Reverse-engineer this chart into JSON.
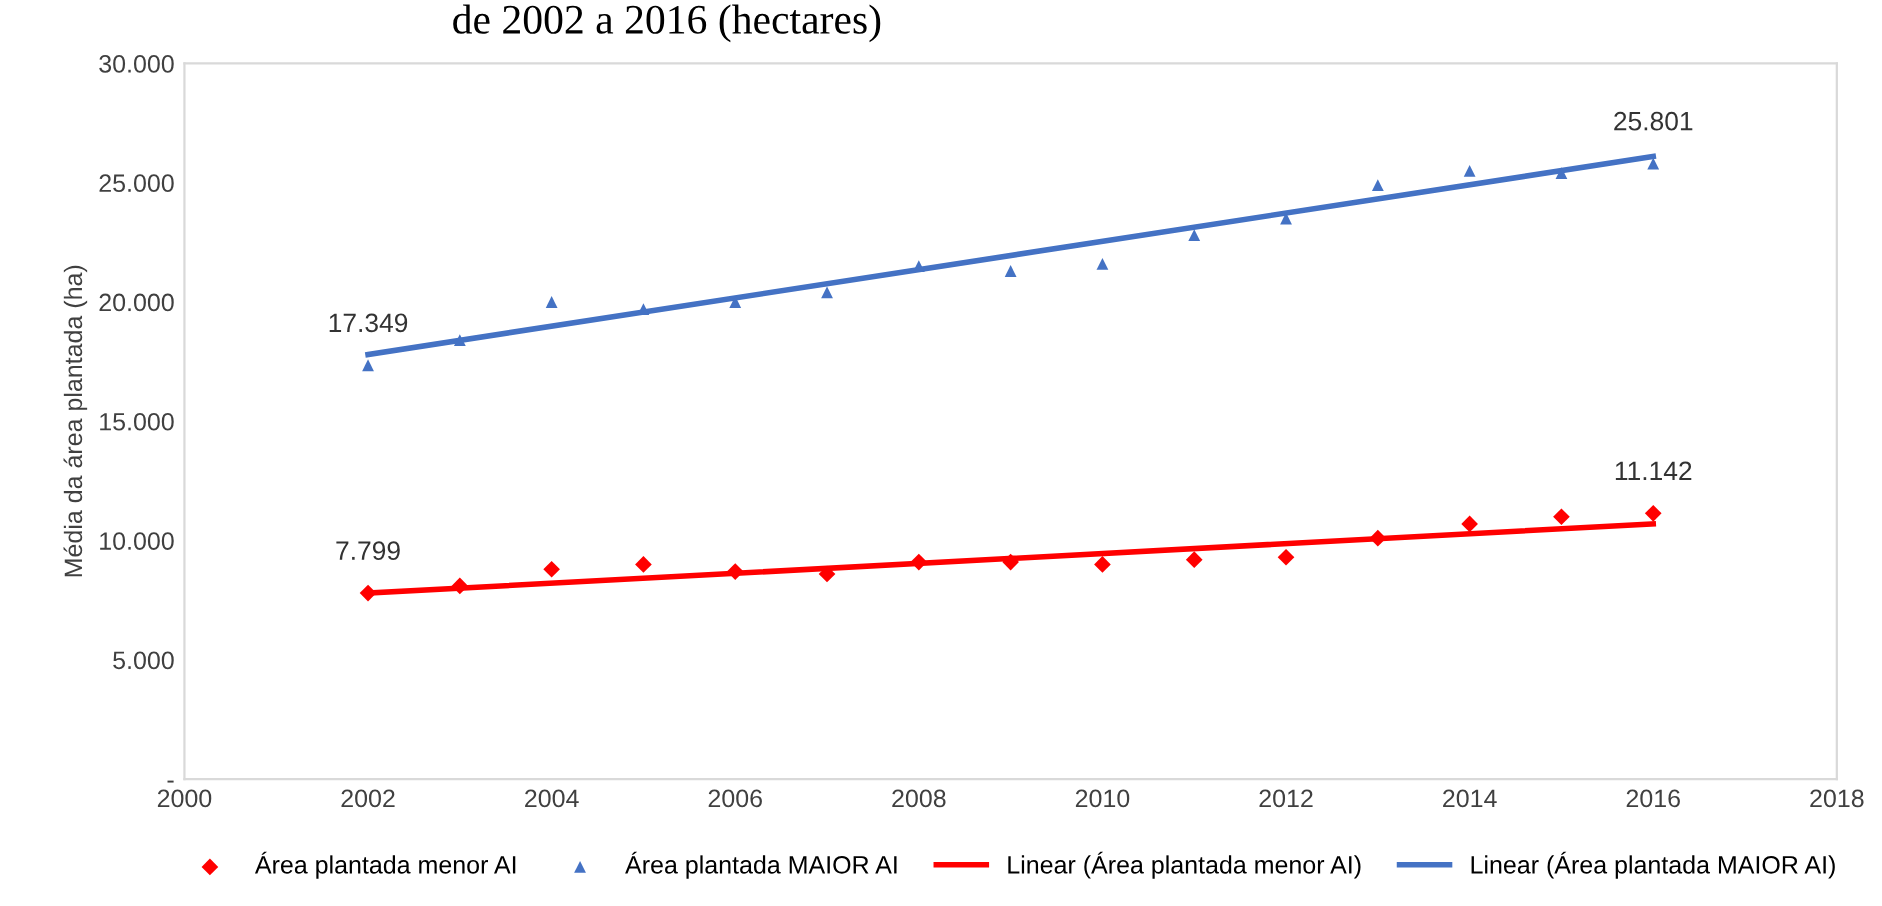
{
  "chart_data": {
    "type": "scatter",
    "title": "de 2002 a 2016 (hectares)",
    "ylabel": "Média da área plantada (ha)",
    "xlim": [
      2000,
      2018
    ],
    "xticks": [
      2000,
      2002,
      2004,
      2006,
      2008,
      2010,
      2012,
      2014,
      2016,
      2018
    ],
    "ylim": [
      0,
      30000
    ],
    "yticks": [
      {
        "value": 0,
        "label": "-"
      },
      {
        "value": 5000,
        "label": "5.000"
      },
      {
        "value": 10000,
        "label": "10.000"
      },
      {
        "value": 15000,
        "label": "15.000"
      },
      {
        "value": 20000,
        "label": "20.000"
      },
      {
        "value": 25000,
        "label": "25.000"
      },
      {
        "value": 30000,
        "label": "30.000"
      }
    ],
    "grid": false,
    "legend": "bottom",
    "series": [
      {
        "name": "Área plantada menor AI",
        "marker": "diamond",
        "color": "#ff0000",
        "x": [
          2002,
          2003,
          2004,
          2005,
          2006,
          2007,
          2008,
          2009,
          2010,
          2011,
          2012,
          2013,
          2014,
          2015,
          2016
        ],
        "values": [
          7799,
          8100,
          8800,
          9000,
          8700,
          8600,
          9100,
          9100,
          9000,
          9200,
          9300,
          10100,
          10700,
          11000,
          11142
        ],
        "value_labels": [
          "7.799",
          null,
          null,
          null,
          null,
          null,
          null,
          null,
          null,
          null,
          null,
          null,
          null,
          null,
          "11.142"
        ]
      },
      {
        "name": "Área plantada MAIOR AI",
        "marker": "triangle",
        "color": "#4472c4",
        "x": [
          2002,
          2003,
          2004,
          2005,
          2006,
          2007,
          2008,
          2009,
          2010,
          2011,
          2012,
          2013,
          2014,
          2015,
          2016
        ],
        "values": [
          17349,
          18400,
          20000,
          19700,
          20000,
          20400,
          21500,
          21300,
          21600,
          22800,
          23500,
          24900,
          25500,
          25400,
          25801
        ],
        "value_labels": [
          "17.349",
          null,
          null,
          null,
          null,
          null,
          null,
          null,
          null,
          null,
          null,
          null,
          null,
          null,
          "25.801"
        ]
      },
      {
        "name": "Linear (Área plantada menor AI)",
        "type": "line",
        "marker": "none",
        "color": "#ff0000",
        "x": [
          2002,
          2016
        ],
        "values": [
          7800,
          10700
        ]
      },
      {
        "name": "Linear (Área plantada MAIOR AI)",
        "type": "line",
        "marker": "none",
        "color": "#4472c4",
        "x": [
          2002,
          2016
        ],
        "values": [
          17800,
          26100
        ]
      }
    ]
  }
}
